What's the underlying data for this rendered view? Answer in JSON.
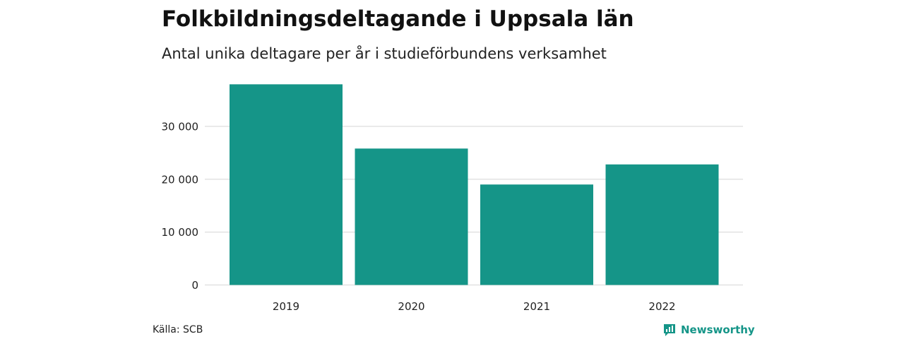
{
  "chart_data": {
    "type": "bar",
    "title": "Folkbildningsdeltagande i Uppsala län",
    "subtitle": "Antal unika deltagare per år i studieförbundens verksamhet",
    "categories": [
      "2019",
      "2020",
      "2021",
      "2022"
    ],
    "values": [
      37950,
      25800,
      19000,
      22800
    ],
    "ylim": [
      0,
      38000
    ],
    "yticks": [
      0,
      10000,
      20000,
      30000
    ],
    "ytick_labels": [
      "0",
      "10 000",
      "20 000",
      "30 000"
    ],
    "xlabel": "",
    "ylabel": "",
    "grid": true,
    "bar_color": "#159588",
    "grid_color": "#dddddd"
  },
  "footer": {
    "source": "Källa: SCB",
    "brand": "Newsworthy",
    "brand_icon": "newsworthy-logo-icon",
    "brand_color": "#159588"
  }
}
